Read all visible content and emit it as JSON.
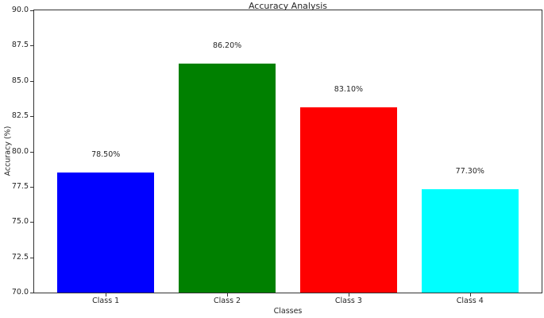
{
  "chart_data": {
    "type": "bar",
    "title": "Accuracy Analysis",
    "xlabel": "Classes",
    "ylabel": "Accuracy (%)",
    "categories": [
      "Class 1",
      "Class 2",
      "Class 3",
      "Class 4"
    ],
    "values": [
      78.5,
      86.2,
      83.1,
      77.3
    ],
    "data_labels": [
      "78.50%",
      "86.20%",
      "83.10%",
      "77.30%"
    ],
    "bar_colors": [
      "#0000ff",
      "#008000",
      "#ff0000",
      "#00ffff"
    ],
    "ylim": [
      70.0,
      90.0
    ],
    "yticks": [
      70.0,
      72.5,
      75.0,
      77.5,
      80.0,
      82.5,
      85.0,
      87.5,
      90.0
    ],
    "ytick_labels": [
      "70.0",
      "72.5",
      "75.0",
      "77.5",
      "80.0",
      "82.5",
      "85.0",
      "87.5",
      "90.0"
    ],
    "xlim": [
      -0.59,
      3.59
    ],
    "bar_width_fraction": 0.8,
    "grid": false,
    "legend": null,
    "axis_color": "#333333",
    "text_color": "#262626",
    "background_color": "#ffffff"
  }
}
